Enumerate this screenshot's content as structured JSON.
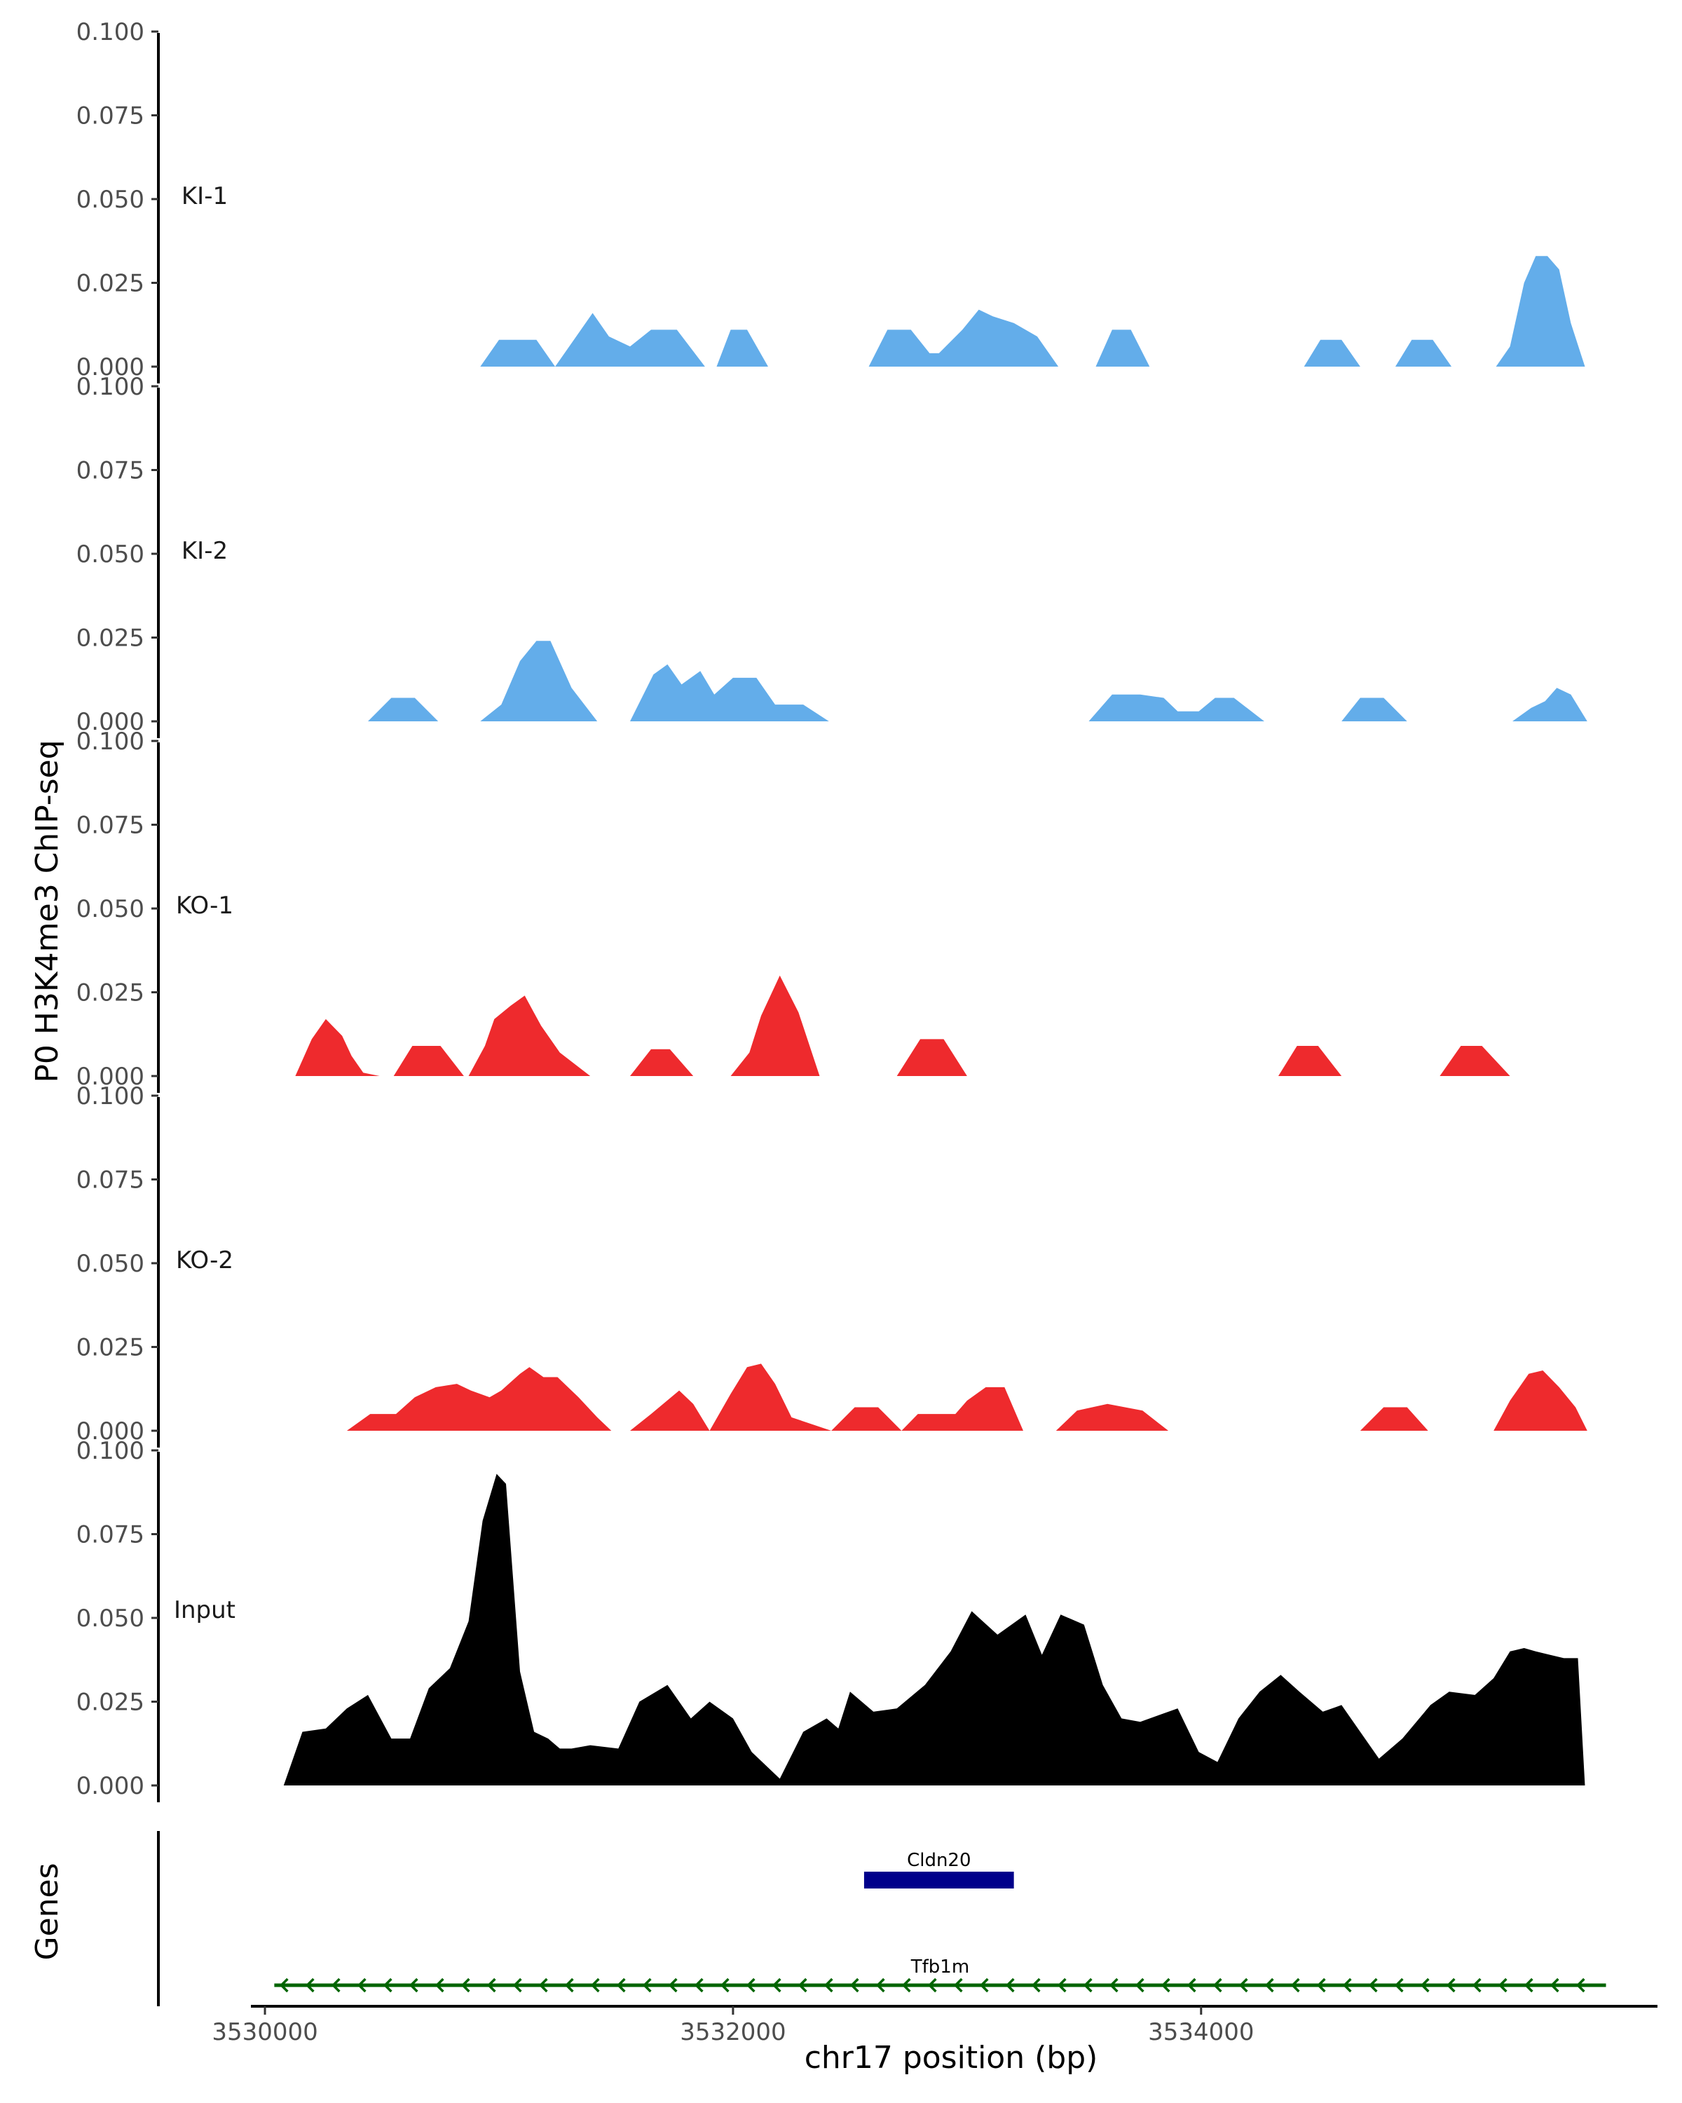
{
  "chart_data": {
    "type": "area",
    "ylabel": "P0 H3K4me3 ChIP-seq",
    "xlabel": "chr17 position (bp)",
    "genes_label": "Genes",
    "xlim": [
      3529940,
      3535950
    ],
    "ylim": [
      0,
      0.1
    ],
    "y_ticks": [
      "0.000",
      "0.025",
      "0.050",
      "0.075",
      "0.100"
    ],
    "x_ticks": [
      {
        "value": 3530000,
        "label": "3530000"
      },
      {
        "value": 3532000,
        "label": "3532000"
      },
      {
        "value": 3534000,
        "label": "3534000"
      }
    ],
    "tracks": [
      {
        "name": "KI-1",
        "color": "#63adea",
        "x": [
          3530920,
          3531000,
          3531080,
          3531160,
          3531240,
          3531330,
          3531400,
          3531470,
          3531560,
          3531650,
          3531760,
          3531880,
          3531930,
          3531990,
          3532060,
          3532150,
          3532230,
          3532580,
          3532660,
          3532760,
          3532840,
          3532880,
          3532980,
          3533050,
          3533110,
          3533200,
          3533300,
          3533390,
          3533550,
          3533620,
          3533700,
          3533780,
          3534440,
          3534510,
          3534600,
          3534680,
          3534830,
          3534900,
          3534990,
          3535070,
          3535260,
          3535320,
          3535380,
          3535430,
          3535480,
          3535530,
          3535580,
          3535640
        ],
        "y": [
          0,
          0.008,
          0.008,
          0.008,
          0,
          0.009,
          0.016,
          0.009,
          0.006,
          0.011,
          0.011,
          0,
          0,
          0.011,
          0.011,
          0,
          0,
          0,
          0.011,
          0.011,
          0.004,
          0.004,
          0.011,
          0.017,
          0.015,
          0.013,
          0.009,
          0,
          0,
          0.011,
          0.011,
          0,
          0,
          0.008,
          0.008,
          0,
          0,
          0.008,
          0.008,
          0,
          0,
          0.006,
          0.025,
          0.033,
          0.033,
          0.029,
          0.013,
          0
        ],
        "label_y": 0.0485
      },
      {
        "name": "KI-2",
        "color": "#63adea",
        "x": [
          3530440,
          3530540,
          3530640,
          3530740,
          3530920,
          3531010,
          3531090,
          3531160,
          3531220,
          3531310,
          3531420,
          3531560,
          3531660,
          3531720,
          3531780,
          3531860,
          3531920,
          3532000,
          3532100,
          3532180,
          3532230,
          3532300,
          3532410,
          3533520,
          3533620,
          3533740,
          3533840,
          3533900,
          3533990,
          3534060,
          3534140,
          3534270,
          3534600,
          3534680,
          3534780,
          3534880,
          3535330,
          3535410,
          3535470,
          3535520,
          3535580,
          3535650
        ],
        "y": [
          0,
          0.007,
          0.007,
          0,
          0,
          0.005,
          0.018,
          0.024,
          0.024,
          0.01,
          0,
          0,
          0.014,
          0.017,
          0.011,
          0.015,
          0.008,
          0.013,
          0.013,
          0.005,
          0.005,
          0.005,
          0,
          0,
          0.008,
          0.008,
          0.007,
          0.003,
          0.003,
          0.007,
          0.007,
          0,
          0,
          0.007,
          0.007,
          0,
          0,
          0.004,
          0.006,
          0.01,
          0.008,
          0
        ],
        "label_y": 0.0485
      },
      {
        "name": "KO-1",
        "color": "#ee2a2d",
        "x": [
          3530130,
          3530200,
          3530260,
          3530330,
          3530370,
          3530420,
          3530490,
          3530550,
          3530630,
          3530750,
          3530850,
          3530870,
          3530940,
          3530980,
          3531050,
          3531110,
          3531180,
          3531260,
          3531390,
          3531560,
          3531650,
          3531730,
          3531830,
          3531990,
          3532070,
          3532120,
          3532200,
          3532280,
          3532370,
          3532700,
          3532800,
          3532900,
          3533000,
          3534330,
          3534410,
          3534500,
          3534600,
          3535020,
          3535110,
          3535200,
          3535320
        ],
        "y": [
          0,
          0.011,
          0.017,
          0.012,
          0.006,
          0.001,
          0,
          0,
          0.009,
          0.009,
          0,
          0,
          0.009,
          0.017,
          0.021,
          0.024,
          0.015,
          0.007,
          0,
          0,
          0.008,
          0.008,
          0,
          0,
          0.007,
          0.018,
          0.03,
          0.019,
          0,
          0,
          0.011,
          0.011,
          0,
          0,
          0.009,
          0.009,
          0,
          0,
          0.009,
          0.009,
          0
        ],
        "label_y": 0.0485
      },
      {
        "name": "KO-2",
        "color": "#ee2a2d",
        "x": [
          3530350,
          3530450,
          3530560,
          3530640,
          3530730,
          3530820,
          3530880,
          3530960,
          3531010,
          3531090,
          3531130,
          3531190,
          3531250,
          3531340,
          3531420,
          3531480,
          3531560,
          3531650,
          3531770,
          3531830,
          3531900,
          3531990,
          3532060,
          3532120,
          3532180,
          3532250,
          3532420,
          3532520,
          3532620,
          3532720,
          3532790,
          3532950,
          3533000,
          3533080,
          3533160,
          3533240,
          3533380,
          3533470,
          3533600,
          3533750,
          3533860,
          3534680,
          3534780,
          3534880,
          3534970,
          3535250,
          3535320,
          3535400,
          3535460,
          3535530,
          3535600,
          3535650
        ],
        "y": [
          0,
          0.005,
          0.005,
          0.01,
          0.013,
          0.014,
          0.012,
          0.01,
          0.012,
          0.017,
          0.019,
          0.016,
          0.016,
          0.01,
          0.004,
          0,
          0,
          0.005,
          0.012,
          0.008,
          0,
          0.011,
          0.019,
          0.02,
          0.014,
          0.004,
          0,
          0.007,
          0.007,
          0,
          0.005,
          0.005,
          0.009,
          0.013,
          0.013,
          0,
          0,
          0.006,
          0.008,
          0.006,
          0,
          0,
          0.007,
          0.007,
          0,
          0,
          0.009,
          0.017,
          0.018,
          0.013,
          0.007,
          0
        ],
        "label_y": 0.0485
      },
      {
        "name": "Input",
        "color": "#000000",
        "x": [
          3530080,
          3530160,
          3530260,
          3530350,
          3530440,
          3530540,
          3530620,
          3530700,
          3530790,
          3530870,
          3530930,
          3530990,
          3531030,
          3531090,
          3531150,
          3531210,
          3531260,
          3531310,
          3531390,
          3531510,
          3531600,
          3531720,
          3531820,
          3531900,
          3532000,
          3532080,
          3532200,
          3532300,
          3532400,
          3532450,
          3532500,
          3532600,
          3532700,
          3532820,
          3532930,
          3533020,
          3533130,
          3533250,
          3533320,
          3533400,
          3533500,
          3533580,
          3533660,
          3533740,
          3533820,
          3533900,
          3533990,
          3534070,
          3534160,
          3534250,
          3534340,
          3534420,
          3534520,
          3534600,
          3534700,
          3534760,
          3534860,
          3534980,
          3535060,
          3535170,
          3535250,
          3535320,
          3535380,
          3535430,
          3535490,
          3535550,
          3535610,
          3535640
        ],
        "y": [
          0,
          0.016,
          0.017,
          0.023,
          0.027,
          0.014,
          0.014,
          0.029,
          0.035,
          0.049,
          0.079,
          0.093,
          0.09,
          0.034,
          0.016,
          0.014,
          0.011,
          0.011,
          0.012,
          0.011,
          0.025,
          0.03,
          0.02,
          0.025,
          0.02,
          0.01,
          0.002,
          0.016,
          0.02,
          0.017,
          0.028,
          0.022,
          0.023,
          0.03,
          0.04,
          0.052,
          0.045,
          0.051,
          0.039,
          0.051,
          0.048,
          0.03,
          0.02,
          0.019,
          0.021,
          0.023,
          0.01,
          0.007,
          0.02,
          0.028,
          0.033,
          0.028,
          0.022,
          0.024,
          0.014,
          0.008,
          0.014,
          0.024,
          0.028,
          0.027,
          0.032,
          0.04,
          0.041,
          0.04,
          0.039,
          0.038,
          0.038,
          0
        ],
        "label_y": 0.05
      }
    ],
    "genes": [
      {
        "name": "Cldn20",
        "start": 3532560,
        "end": 3533200,
        "strand": "+",
        "color": "#00008b"
      },
      {
        "name": "Tfb1m",
        "start": 3530040,
        "end": 3535730,
        "strand": "-",
        "color": "#006400"
      }
    ]
  }
}
